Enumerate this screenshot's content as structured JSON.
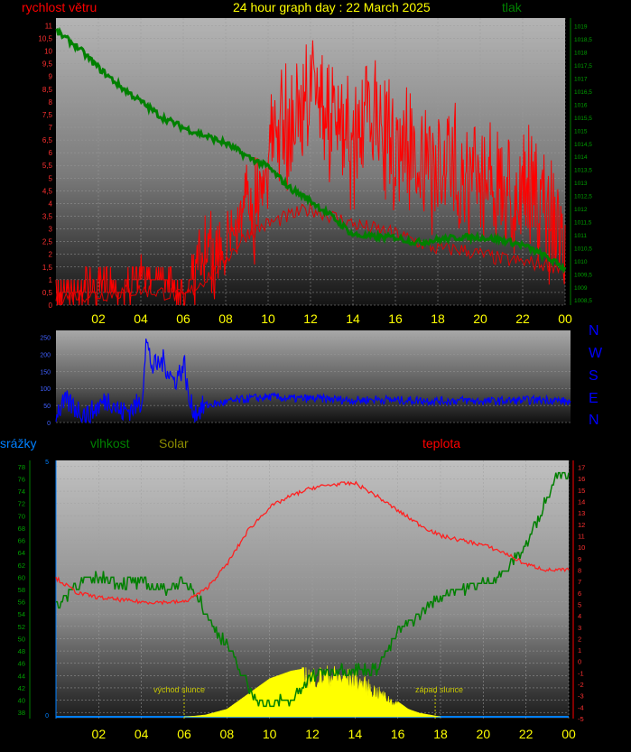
{
  "header": {
    "wind_label": "rychlost větru",
    "title": "24 hour graph day : 22 March 2025",
    "pressure_label": "tlak",
    "precip_label": "srážky",
    "humidity_label": "vlhkost",
    "solar_label": "Solar",
    "temp_label": "teplota"
  },
  "compass": [
    "N",
    "W",
    "S",
    "E",
    "N"
  ],
  "colors": {
    "wind": "#ff0000",
    "pressure": "#008000",
    "direction": "#0000ff",
    "temp": "#ff2020",
    "humidity": "#008000",
    "solar": "#ffff00",
    "axis_yellow": "#ffff00",
    "precip": "#0080ff"
  },
  "annotations": {
    "sunrise": "východ slunce",
    "sunset": "západ slunce"
  },
  "chart_data": [
    {
      "type": "line",
      "name": "wind_pressure",
      "x_ticks": [
        "02",
        "04",
        "06",
        "08",
        "10",
        "12",
        "14",
        "16",
        "18",
        "20",
        "22",
        "00"
      ],
      "y_left_ticks": [
        "0",
        "0,5",
        "1",
        "1,5",
        "2",
        "2,5",
        "3",
        "3,5",
        "4",
        "4,5",
        "5",
        "5,5",
        "6",
        "6,5",
        "7",
        "7,5",
        "8",
        "8,5",
        "9",
        "9,5",
        "10",
        "10,5",
        "11"
      ],
      "y_left_lim": [
        0,
        11.3
      ],
      "y_right_ticks": [
        "1008,5",
        "1009",
        "1009,5",
        "1010",
        "1010,5",
        "1011",
        "1011,5",
        "1012",
        "1012,5",
        "1013",
        "1013,5",
        "1014",
        "1014,5",
        "1015",
        "1015,5",
        "1016",
        "1016,5",
        "1017",
        "1017,5",
        "1018",
        "1018,5",
        "1019"
      ],
      "y_right_lim": [
        1008.3,
        1019.3
      ],
      "series": [
        {
          "role": "wind_gust",
          "hours": [
            0,
            0.5,
            1,
            1.5,
            2,
            2.5,
            3,
            3.5,
            4,
            4.5,
            5,
            5.5,
            6,
            6.5,
            7,
            7.5,
            8,
            8.5,
            9,
            9.5,
            10,
            10.5,
            11,
            11.5,
            12,
            12.5,
            13,
            13.5,
            14,
            14.5,
            15,
            15.5,
            16,
            16.5,
            17,
            17.5,
            18,
            18.5,
            19,
            19.5,
            20,
            20.5,
            21,
            21.5,
            22,
            22.5,
            23,
            23.5,
            24
          ],
          "values": [
            0.8,
            1.2,
            1,
            1.3,
            0.9,
            1.5,
            1,
            1.2,
            1.6,
            1.4,
            1.8,
            1.2,
            0.8,
            2.2,
            3,
            2.8,
            3.5,
            4,
            5,
            6,
            7.5,
            8,
            8.5,
            9,
            10,
            9.5,
            8.5,
            8,
            7.5,
            8.5,
            9,
            8,
            7.5,
            8,
            7,
            6.5,
            6.5,
            7,
            6.8,
            6,
            6.5,
            6.2,
            6,
            5.5,
            5.5,
            5.8,
            5,
            4.5,
            4.2
          ]
        },
        {
          "role": "wind_avg",
          "hours": [
            0,
            1,
            2,
            3,
            4,
            5,
            6,
            7,
            8,
            9,
            10,
            11,
            12,
            13,
            14,
            15,
            16,
            17,
            18,
            19,
            20,
            21,
            22,
            23,
            24
          ],
          "values": [
            0.3,
            0.4,
            0.4,
            0.5,
            0.6,
            0.5,
            0.3,
            1,
            1.8,
            2.8,
            3.2,
            3.5,
            3.8,
            3.5,
            3.2,
            3,
            2.8,
            2.5,
            2.2,
            2.2,
            2,
            1.8,
            1.7,
            1.6,
            1.5
          ]
        },
        {
          "role": "pressure",
          "hours": [
            0,
            1,
            2,
            3,
            4,
            5,
            6,
            7,
            8,
            9,
            10,
            11,
            12,
            13,
            14,
            15,
            16,
            17,
            18,
            19,
            20,
            21,
            22,
            23,
            24
          ],
          "values": [
            1018.8,
            1018.2,
            1017.4,
            1016.7,
            1016.1,
            1015.5,
            1015.1,
            1014.8,
            1014.5,
            1014,
            1013.6,
            1012.8,
            1012.3,
            1011.7,
            1011,
            1010.9,
            1010.9,
            1010.7,
            1010.8,
            1010.9,
            1010.9,
            1010.8,
            1010.6,
            1010.2,
            1009.7
          ]
        }
      ]
    },
    {
      "type": "line",
      "name": "wind_direction",
      "y_ticks": [
        "0",
        "50",
        "100",
        "150",
        "200",
        "250"
      ],
      "ylim": [
        0,
        270
      ],
      "series": [
        {
          "hours": [
            0,
            0.5,
            1,
            1.5,
            2,
            2.5,
            3,
            3.5,
            4,
            4.2,
            4.5,
            5,
            5.5,
            6,
            6.2,
            6.5,
            7,
            8,
            9,
            10,
            11,
            12,
            13,
            14,
            15,
            16,
            17,
            18,
            19,
            20,
            21,
            22,
            23,
            24
          ],
          "values": [
            30,
            60,
            40,
            20,
            50,
            70,
            30,
            40,
            60,
            240,
            160,
            180,
            120,
            170,
            60,
            30,
            50,
            60,
            70,
            75,
            70,
            70,
            68,
            65,
            68,
            65,
            65,
            63,
            65,
            62,
            64,
            65,
            67,
            60
          ]
        }
      ]
    },
    {
      "type": "line",
      "name": "temp_humidity_solar",
      "x_ticks": [
        "02",
        "04",
        "06",
        "08",
        "10",
        "12",
        "14",
        "16",
        "18",
        "20",
        "22",
        "00"
      ],
      "humidity_ticks": [
        "38",
        "40",
        "42",
        "44",
        "46",
        "48",
        "50",
        "52",
        "54",
        "56",
        "58",
        "60",
        "62",
        "64",
        "66",
        "68",
        "70",
        "72",
        "74",
        "76",
        "78"
      ],
      "humidity_lim": [
        37,
        79
      ],
      "temp_ticks": [
        "-5",
        "-4",
        "-3",
        "-2",
        "-1",
        "0",
        "1",
        "2",
        "3",
        "4",
        "5",
        "6",
        "7",
        "8",
        "9",
        "10",
        "11",
        "12",
        "13",
        "14",
        "15",
        "16",
        "17"
      ],
      "temp_lim": [
        -5,
        17.6
      ],
      "precip_ticks": [
        "0",
        "5"
      ],
      "series": [
        {
          "role": "temperature",
          "hours": [
            0,
            1,
            2,
            3,
            4,
            5,
            6,
            7,
            8,
            9,
            10,
            11,
            12,
            13,
            14,
            15,
            16,
            17,
            18,
            19,
            20,
            21,
            22,
            23,
            24
          ],
          "values": [
            7.3,
            6,
            5.6,
            5.4,
            5.2,
            5.2,
            5.2,
            6.3,
            8.5,
            11.5,
            13.5,
            14.5,
            15.2,
            15.5,
            15.6,
            14.5,
            13.2,
            12,
            11,
            10.6,
            10.2,
            9.5,
            8.5,
            8,
            8
          ]
        },
        {
          "role": "humidity",
          "hours": [
            0,
            1,
            2,
            3,
            4,
            5,
            6,
            6.5,
            7,
            8,
            9,
            9.5,
            10,
            10.5,
            11,
            11.5,
            12,
            13,
            14,
            15,
            16,
            17,
            18,
            19,
            20,
            21,
            22,
            23,
            23.5,
            24
          ],
          "values": [
            55,
            59,
            60,
            59,
            59,
            58,
            59,
            58,
            54,
            49,
            42,
            40,
            39,
            40,
            40,
            42,
            44,
            45,
            45,
            45,
            51,
            54,
            57,
            58,
            59,
            61,
            65,
            73,
            77,
            77
          ]
        },
        {
          "role": "solar",
          "hours": [
            6,
            6.5,
            7,
            8,
            9,
            10,
            11,
            12,
            13,
            14,
            14.5,
            15,
            15.5,
            16,
            16.5,
            17,
            18,
            24
          ],
          "values": [
            0,
            2,
            5,
            20,
            60,
            100,
            120,
            130,
            130,
            120,
            100,
            80,
            60,
            40,
            20,
            10,
            0,
            0
          ]
        }
      ]
    }
  ]
}
